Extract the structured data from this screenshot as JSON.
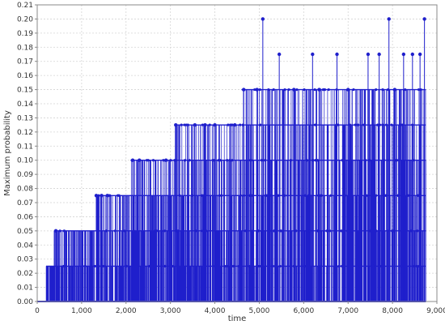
{
  "chart_data": {
    "type": "line",
    "title": "",
    "xlabel": "time",
    "ylabel": "Maximum probability",
    "xlim": [
      0,
      9000
    ],
    "ylim": [
      0,
      0.21
    ],
    "grid": true,
    "x_tick_labels": [
      "0",
      "1,000",
      "2,000",
      "3,000",
      "4,000",
      "5,000",
      "6,000",
      "7,000",
      "8,000",
      "9,000"
    ],
    "y_tick_labels": [
      "0.00",
      "0.01",
      "0.02",
      "0.03",
      "0.04",
      "0.05",
      "0.06",
      "0.07",
      "0.08",
      "0.09",
      "0.10",
      "0.11",
      "0.12",
      "0.13",
      "0.14",
      "0.15",
      "0.16",
      "0.17",
      "0.18",
      "0.19",
      "0.20",
      "0.21"
    ],
    "series": [
      {
        "color": "#1f1fcc",
        "style": "dense stem plot with circular markers at local maxima",
        "x_extent": [
          0,
          8750
        ],
        "peaks": [
          {
            "x": 420,
            "y": 0.05
          },
          {
            "x": 1330,
            "y": 0.075
          },
          {
            "x": 1450,
            "y": 0.075
          },
          {
            "x": 1580,
            "y": 0.075
          },
          {
            "x": 2150,
            "y": 0.1
          },
          {
            "x": 2300,
            "y": 0.1
          },
          {
            "x": 2900,
            "y": 0.1
          },
          {
            "x": 3120,
            "y": 0.125
          },
          {
            "x": 3550,
            "y": 0.125
          },
          {
            "x": 3780,
            "y": 0.125
          },
          {
            "x": 4000,
            "y": 0.125
          },
          {
            "x": 4450,
            "y": 0.125
          },
          {
            "x": 4650,
            "y": 0.15
          },
          {
            "x": 4950,
            "y": 0.15
          },
          {
            "x": 5080,
            "y": 0.2
          },
          {
            "x": 5450,
            "y": 0.175
          },
          {
            "x": 5780,
            "y": 0.15
          },
          {
            "x": 6200,
            "y": 0.175
          },
          {
            "x": 6350,
            "y": 0.15
          },
          {
            "x": 6750,
            "y": 0.175
          },
          {
            "x": 7000,
            "y": 0.15
          },
          {
            "x": 7450,
            "y": 0.175
          },
          {
            "x": 7700,
            "y": 0.175
          },
          {
            "x": 7920,
            "y": 0.2
          },
          {
            "x": 8050,
            "y": 0.15
          },
          {
            "x": 8250,
            "y": 0.175
          },
          {
            "x": 8450,
            "y": 0.175
          },
          {
            "x": 8620,
            "y": 0.175
          },
          {
            "x": 8720,
            "y": 0.2
          }
        ],
        "levels": [
          {
            "y": 0.025,
            "x_from": 200,
            "x_to": 8750
          },
          {
            "y": 0.05,
            "x_from": 380,
            "x_to": 8750
          },
          {
            "y": 0.075,
            "x_from": 1300,
            "x_to": 8750
          },
          {
            "y": 0.1,
            "x_from": 2100,
            "x_to": 8750
          },
          {
            "y": 0.125,
            "x_from": 3100,
            "x_to": 8750
          },
          {
            "y": 0.15,
            "x_from": 4600,
            "x_to": 8750
          }
        ]
      }
    ]
  }
}
